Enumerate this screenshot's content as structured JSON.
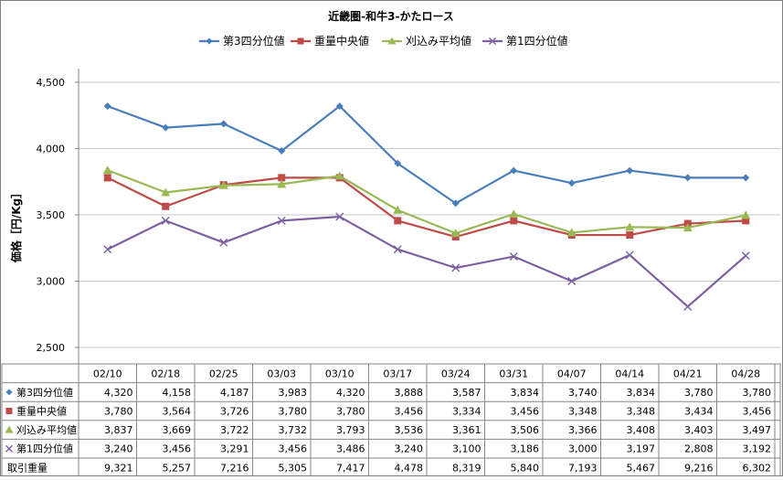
{
  "chart_data": {
    "type": "line",
    "title": "近畿圏-和牛3-かたロース",
    "ylabel": "価格［円/Kg］",
    "xlabel": "",
    "ylim": [
      2500,
      4500
    ],
    "yticks": [
      "2,500",
      "3,000",
      "3,500",
      "4,000",
      "4,500"
    ],
    "ytick_values": [
      2500,
      3000,
      3500,
      4000,
      4500
    ],
    "categories": [
      "02/10",
      "02/18",
      "02/25",
      "03/03",
      "03/10",
      "03/17",
      "03/24",
      "03/31",
      "04/07",
      "04/14",
      "04/21",
      "04/28"
    ],
    "grid": "horizontal",
    "legend_position": "top",
    "series": [
      {
        "name": "第3四分位値",
        "color": "#4a7ebb",
        "marker": "diamond",
        "values": [
          4320,
          4158,
          4187,
          3983,
          4320,
          3888,
          3587,
          3834,
          3740,
          3834,
          3780,
          3780
        ],
        "labels": [
          "4,320",
          "4,158",
          "4,187",
          "3,983",
          "4,320",
          "3,888",
          "3,587",
          "3,834",
          "3,740",
          "3,834",
          "3,780",
          "3,780"
        ]
      },
      {
        "name": "重量中央値",
        "color": "#be4b48",
        "marker": "square",
        "values": [
          3780,
          3564,
          3726,
          3780,
          3780,
          3456,
          3334,
          3456,
          3348,
          3348,
          3434,
          3456
        ],
        "labels": [
          "3,780",
          "3,564",
          "3,726",
          "3,780",
          "3,780",
          "3,456",
          "3,334",
          "3,456",
          "3,348",
          "3,348",
          "3,434",
          "3,456"
        ]
      },
      {
        "name": "刈込み平均値",
        "color": "#98b954",
        "marker": "triangle",
        "values": [
          3837,
          3669,
          3722,
          3732,
          3793,
          3536,
          3361,
          3506,
          3366,
          3408,
          3403,
          3497
        ],
        "labels": [
          "3,837",
          "3,669",
          "3,722",
          "3,732",
          "3,793",
          "3,536",
          "3,361",
          "3,506",
          "3,366",
          "3,408",
          "3,403",
          "3,497"
        ]
      },
      {
        "name": "第1四分位値",
        "color": "#7d60a0",
        "marker": "x",
        "values": [
          3240,
          3456,
          3291,
          3456,
          3486,
          3240,
          3100,
          3186,
          3000,
          3197,
          2808,
          3192
        ],
        "labels": [
          "3,240",
          "3,456",
          "3,291",
          "3,456",
          "3,486",
          "3,240",
          "3,100",
          "3,186",
          "3,000",
          "3,197",
          "2,808",
          "3,192"
        ]
      }
    ],
    "table_extra_rows": [
      {
        "name": "取引重量",
        "values": [
          9321,
          5257,
          7216,
          5305,
          7417,
          4478,
          8319,
          5840,
          7193,
          5467,
          9216,
          6302
        ],
        "labels": [
          "9,321",
          "5,257",
          "7,216",
          "5,305",
          "7,417",
          "4,478",
          "8,319",
          "5,840",
          "7,193",
          "5,467",
          "9,216",
          "6,302"
        ]
      }
    ]
  }
}
